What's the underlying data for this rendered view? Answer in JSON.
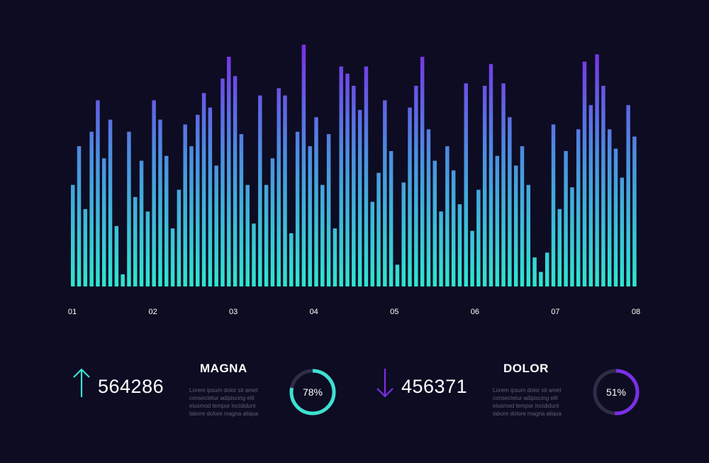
{
  "chart_data": {
    "type": "bar",
    "x_tick_labels": [
      "01",
      "02",
      "03",
      "04",
      "05",
      "06",
      "07",
      "08"
    ],
    "ylim": [
      0,
      100
    ],
    "values": [
      42,
      58,
      32,
      64,
      77,
      53,
      69,
      25,
      5,
      64,
      37,
      52,
      31,
      77,
      69,
      54,
      24,
      40,
      67,
      58,
      71,
      80,
      74,
      50,
      86,
      95,
      87,
      63,
      42,
      26,
      79,
      42,
      53,
      82,
      79,
      22,
      64,
      100,
      58,
      70,
      42,
      63,
      24,
      91,
      88,
      83,
      73,
      91,
      35,
      47,
      77,
      56,
      9,
      43,
      74,
      83,
      95,
      65,
      52,
      31,
      58,
      48,
      34,
      84,
      23,
      40,
      83,
      92,
      54,
      84,
      70,
      50,
      58,
      42,
      12,
      6,
      14,
      67,
      32,
      56,
      41,
      65,
      93,
      75,
      96,
      83,
      65,
      57,
      45,
      75,
      62
    ],
    "gradient": {
      "bottom": "#2ee6d0",
      "middle": "#4c8de0",
      "top": "#7a2ee6"
    },
    "grid": false,
    "legend": "none"
  },
  "stats": [
    {
      "direction": "up",
      "value": "564286",
      "label": "MAGNA",
      "description": [
        "Lorem ipsum dolor sit amet",
        "consectetur adipiscing elit",
        "eiusmod tempor incididunt",
        "labore dolore magna aliqua"
      ],
      "percent_text": "78%",
      "percent": 78,
      "color": "#3ee0d2"
    },
    {
      "direction": "down",
      "value": "456371",
      "label": "DOLOR",
      "description": [
        "Lorem ipsum dolor sit amet",
        "consectetur adipiscing elit",
        "eiusmod tempor incididunt",
        "labore dolore magna aliqua"
      ],
      "percent_text": "51%",
      "percent": 51,
      "color": "#7b2ee6"
    }
  ],
  "colors": {
    "background": "#0d0c22",
    "ring_track": "#2e2d48",
    "tick_text": "#ffffff"
  }
}
